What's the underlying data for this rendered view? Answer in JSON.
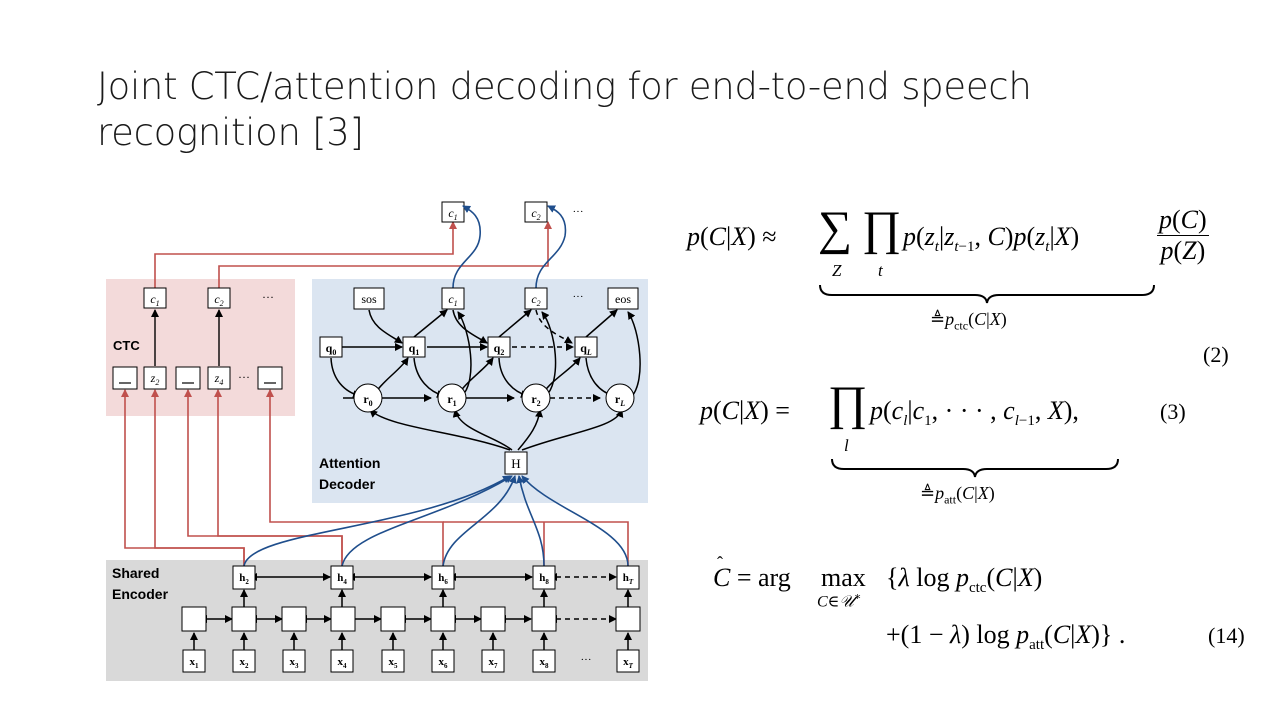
{
  "slide": {
    "title_line1": "Joint CTC/attention decoding for end-to-end speech",
    "title_line2": "recognition [3]"
  },
  "figure": {
    "ctc_label": "CTC",
    "attention_label_1": "Attention",
    "attention_label_2": "Decoder",
    "encoder_label_1": "Shared",
    "encoder_label_2": "Encoder",
    "top_outputs": [
      "c1",
      "c2",
      "..."
    ],
    "ctc_outputs": [
      "c1",
      "c2",
      "..."
    ],
    "ctc_states": [
      "_",
      "z2",
      "_",
      "z4",
      "_"
    ],
    "dec_outputs": [
      "sos",
      "c1",
      "c2",
      "...",
      "eos"
    ],
    "dec_queries": [
      "q0",
      "q1",
      "q2",
      "qL"
    ],
    "dec_contexts": [
      "r0",
      "r1",
      "r2",
      "rL"
    ],
    "hidden": "H",
    "enc_h": [
      "h2",
      "h4",
      "h6",
      "h8",
      "hT"
    ],
    "inputs": [
      "x1",
      "x2",
      "x3",
      "x4",
      "x5",
      "x6",
      "x7",
      "x8",
      "...",
      "xT"
    ]
  },
  "equations": {
    "eq2_number": "(2)",
    "eq3_number": "(3)",
    "eq14_number": "(14)",
    "eq2_brace_label": "≜p_ctc(C|X)",
    "eq3_brace_label": "≜p_att(C|X)"
  },
  "colors": {
    "ctc_bg": "#f3dada",
    "dec_bg": "#dbe5f1",
    "enc_bg": "#d9d9d9",
    "ctc_line": "#c0504d",
    "att_line": "#1f4e8c"
  }
}
